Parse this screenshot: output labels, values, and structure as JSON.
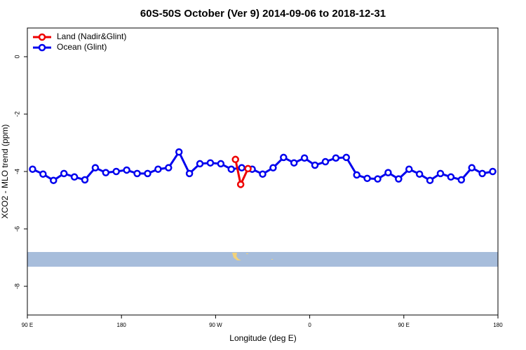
{
  "chart_data": {
    "type": "line",
    "title": "60S-50S October (Ver 9)   2014-09-06 to 2018-12-31",
    "x_label": "Longitude (deg E)",
    "y_label": "XCO2 - MLO trend (ppm)",
    "xlim": [
      90,
      540
    ],
    "xticks": [
      {
        "value": 90,
        "label": "90 E"
      },
      {
        "value": 180,
        "label": "180"
      },
      {
        "value": 270,
        "label": "90 W"
      },
      {
        "value": 360,
        "label": "0"
      },
      {
        "value": 450,
        "label": "90 E"
      },
      {
        "value": 540,
        "label": "180"
      }
    ],
    "ylim": [
      -9,
      1
    ],
    "yticks": [
      0,
      -2,
      -4,
      -6,
      -8
    ],
    "legend": "top-left",
    "series": [
      {
        "name": "Land (Nadir&Glint)",
        "color": "#ee0000",
        "x": [
          289,
          294,
          301
        ],
        "values": [
          -3.58,
          -4.45,
          -3.9
        ]
      },
      {
        "name": "Ocean (Glint)",
        "color": "#0000ee",
        "x": [
          95,
          105,
          115,
          125,
          135,
          145,
          155,
          165,
          175,
          185,
          195,
          205,
          215,
          225,
          235,
          245,
          255,
          265,
          275,
          285,
          295,
          305,
          315,
          325,
          335,
          345,
          355,
          365,
          375,
          385,
          395,
          405,
          415,
          425,
          435,
          445,
          455,
          465,
          475,
          485,
          495,
          505,
          515,
          525,
          535
        ],
        "values": [
          -3.92,
          -4.09,
          -4.31,
          -4.07,
          -4.19,
          -4.29,
          -3.87,
          -4.04,
          -4.0,
          -3.95,
          -4.07,
          -4.07,
          -3.92,
          -3.87,
          -3.32,
          -4.07,
          -3.73,
          -3.7,
          -3.73,
          -3.92,
          -3.87,
          -3.92,
          -4.09,
          -3.87,
          -3.51,
          -3.7,
          -3.53,
          -3.78,
          -3.66,
          -3.53,
          -3.51,
          -4.12,
          -4.24,
          -4.26,
          -4.04,
          -4.26,
          -3.92,
          -4.09,
          -4.31,
          -4.07,
          -4.19,
          -4.29,
          -3.87,
          -4.07,
          -4.0
        ]
      }
    ]
  }
}
